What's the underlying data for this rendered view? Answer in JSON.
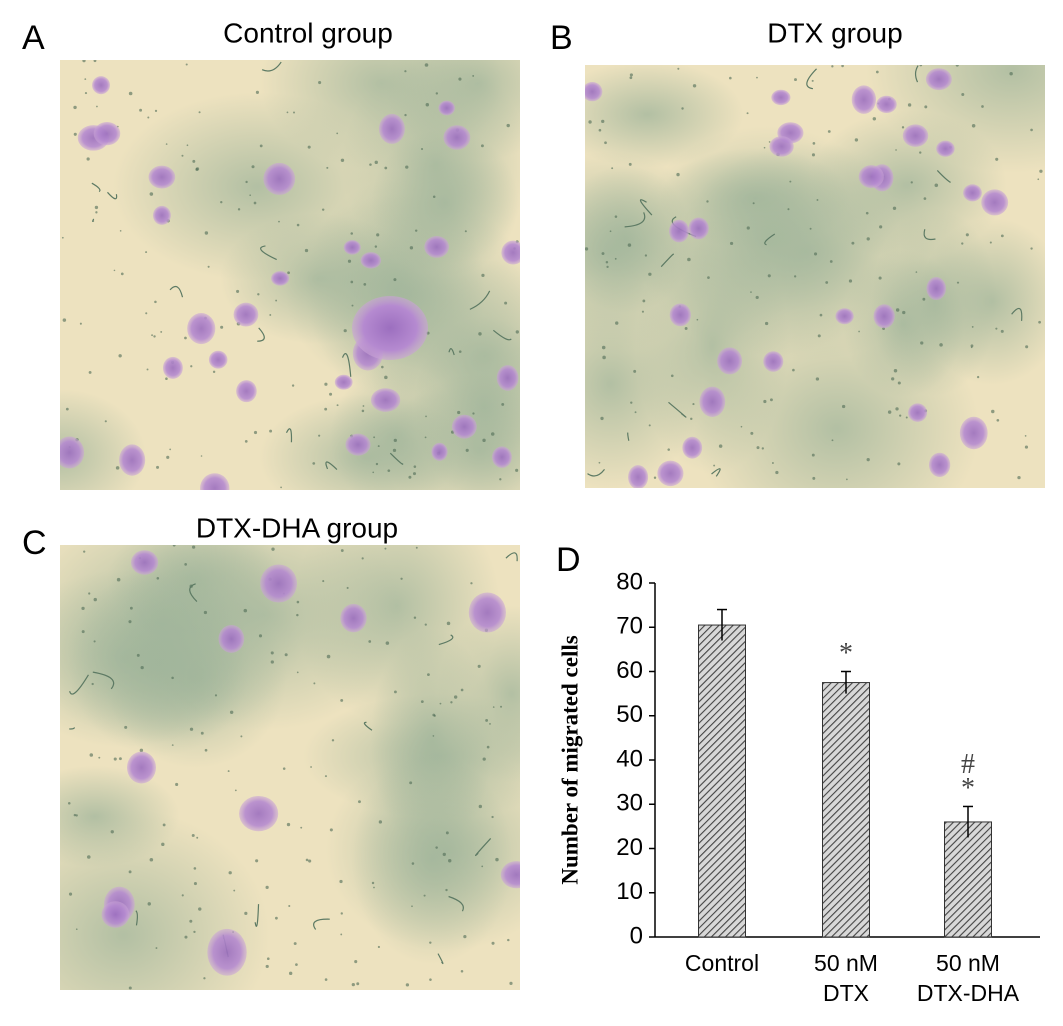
{
  "panels": [
    {
      "letter": "A",
      "title": "Control group"
    },
    {
      "letter": "B",
      "title": "DTX group"
    },
    {
      "letter": "C",
      "title": "DTX-DHA group"
    }
  ],
  "chart_data": {
    "type": "bar",
    "panel_letter": "D",
    "y_label": "Number of migrated cells",
    "categories": [
      [
        "Control"
      ],
      [
        "50 nM",
        "DTX"
      ],
      [
        "50 nM",
        "DTX-DHA"
      ]
    ],
    "values": [
      70.5,
      57.5,
      26
    ],
    "errors": [
      3.5,
      2.5,
      3.5
    ],
    "value_annotations": [
      null,
      [
        "*"
      ],
      [
        "#",
        "*"
      ]
    ],
    "color": "#9a9a9a",
    "ylim": [
      0,
      80
    ],
    "yticks": [
      0,
      10,
      20,
      30,
      40,
      50,
      60,
      70,
      80
    ]
  }
}
